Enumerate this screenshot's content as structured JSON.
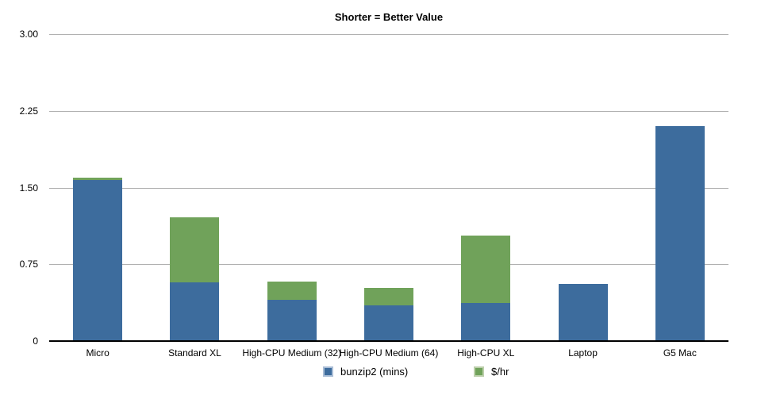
{
  "chart_data": {
    "type": "bar",
    "stacked": true,
    "title": "Shorter = Better Value",
    "xlabel": "",
    "ylabel": "",
    "ylim": [
      0,
      3
    ],
    "grid": true,
    "legend_position": "bottom",
    "background_color": "#ffffff",
    "gridline_color": "#b1b1b1",
    "axis_line_color": "#000000",
    "categories": [
      "Micro",
      "Standard XL",
      "High-CPU Medium (32)",
      "High-CPU Medium (64)",
      "High-CPU XL",
      "Laptop",
      "G5 Mac"
    ],
    "series": [
      {
        "name": "bunzip2 (mins)",
        "color": "#3d6c9d",
        "swatch_border": "#a9bdd6",
        "values": [
          1.57,
          0.57,
          0.4,
          0.35,
          0.37,
          0.56,
          2.1
        ]
      },
      {
        "name": "$/hr",
        "color": "#70a25a",
        "swatch_border": "#bccfab",
        "values": [
          0.03,
          0.64,
          0.18,
          0.17,
          0.66,
          0,
          0
        ]
      }
    ],
    "yticks": [
      {
        "label": "3.00",
        "value": 3.0
      },
      {
        "label": "2.25",
        "value": 2.25
      },
      {
        "label": "1.50",
        "value": 1.5
      },
      {
        "label": "0.75",
        "value": 0.75
      },
      {
        "label": "0",
        "value": 0
      }
    ]
  }
}
